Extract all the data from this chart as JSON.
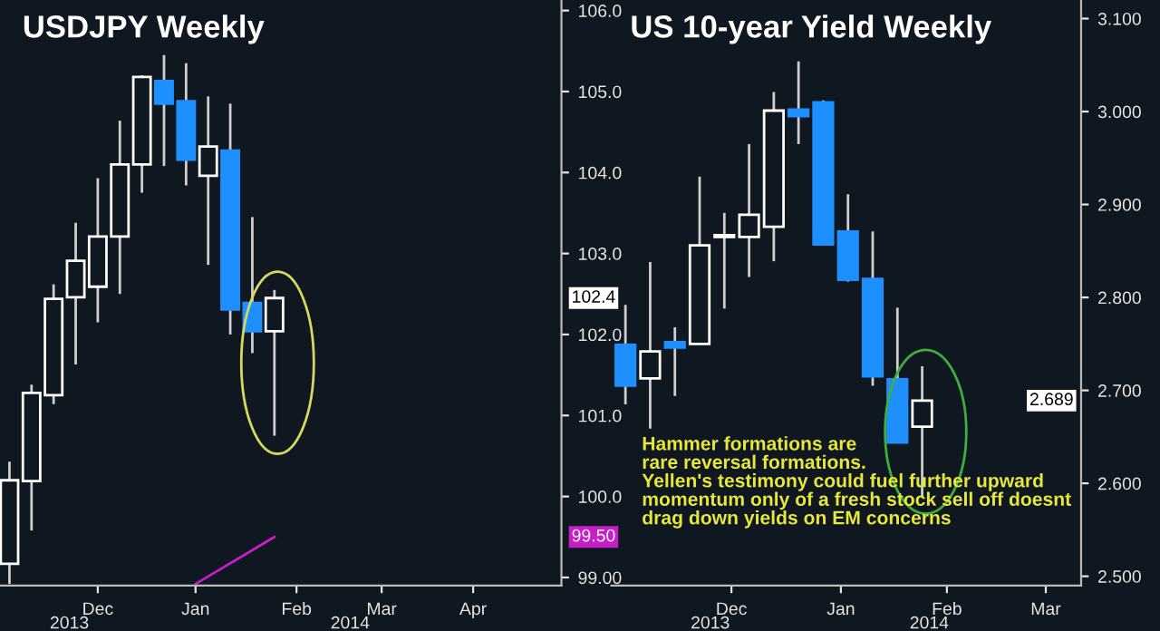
{
  "chart_data": [
    {
      "type": "candlestick",
      "title": "USDJPY Weekly",
      "x": [
        "2013-11-15",
        "2013-11-22",
        "2013-11-29",
        "2013-12-06",
        "2013-12-13",
        "2013-12-20",
        "2013-12-27",
        "2014-01-03",
        "2014-01-10",
        "2014-01-17",
        "2014-01-24",
        "2014-01-31",
        "2014-02-07"
      ],
      "ohlc": [
        [
          99.17,
          100.43,
          98.92,
          100.2
        ],
        [
          100.19,
          101.38,
          99.58,
          101.28
        ],
        [
          101.25,
          102.62,
          101.14,
          102.44
        ],
        [
          102.46,
          103.38,
          101.63,
          102.91
        ],
        [
          102.59,
          103.93,
          102.15,
          103.21
        ],
        [
          103.21,
          104.64,
          102.5,
          104.1
        ],
        [
          104.1,
          105.2,
          103.75,
          105.18
        ],
        [
          105.13,
          105.45,
          104.08,
          104.85
        ],
        [
          104.88,
          105.35,
          103.84,
          104.16
        ],
        [
          103.96,
          104.94,
          102.86,
          104.32
        ],
        [
          104.27,
          104.85,
          102.0,
          102.31
        ],
        [
          102.39,
          103.45,
          101.77,
          102.04
        ],
        [
          102.04,
          102.55,
          100.75,
          102.45
        ]
      ],
      "colors": [
        "#ffffff",
        "#ffffff",
        "#ffffff",
        "#ffffff",
        "#ffffff",
        "#ffffff",
        "#ffffff",
        "#1e8fff",
        "#1e8fff",
        "#ffffff",
        "#1e8fff",
        "#1e8fff",
        "#ffffff"
      ],
      "series": [
        {
          "type": "line",
          "color": "#c81ec8",
          "x": [
            "2014-01-13",
            "2014-02-07"
          ],
          "values": [
            98.92,
            99.5
          ]
        }
      ],
      "xlim": [
        "2013-11-12",
        "2014-05-09"
      ],
      "xticks": [
        {
          "value": "2013-12-13",
          "label": "Dec"
        },
        {
          "value": "2014-01-13",
          "label": "Jan"
        },
        {
          "value": "2014-02-14",
          "label": "Feb"
        },
        {
          "value": "2014-03-13",
          "label": "Mar"
        },
        {
          "value": "2014-04-11",
          "label": "Apr"
        }
      ],
      "x2lim": [
        "2013-11-12",
        "2014-05-09"
      ],
      "x2ticks": [
        {
          "value": "2013-12-04",
          "label": "2013"
        },
        {
          "value": "2014-03-03",
          "label": "2014"
        }
      ],
      "ylim": [
        98.9,
        106.13
      ],
      "yticks": [
        {
          "value": 99,
          "label": "99.00"
        },
        {
          "value": 100,
          "label": "100.0"
        },
        {
          "value": 101,
          "label": "101.0"
        },
        {
          "value": 102,
          "label": "102.0"
        },
        {
          "value": 103,
          "label": "103.0"
        },
        {
          "value": 104,
          "label": "104.0"
        },
        {
          "value": 105,
          "label": "105.0"
        },
        {
          "value": 106,
          "label": "106.0"
        }
      ],
      "annotations": [
        "102.4",
        "99.50"
      ],
      "grid": false,
      "legend": false
    },
    {
      "type": "candlestick",
      "title": "US 10-year Yield Weekly",
      "x": [
        "2013-11-15",
        "2013-11-22",
        "2013-11-29",
        "2013-12-06",
        "2013-12-13",
        "2013-12-20",
        "2013-12-27",
        "2014-01-03",
        "2014-01-10",
        "2014-01-17",
        "2014-01-24",
        "2014-01-31",
        "2014-02-07"
      ],
      "ohlc": [
        [
          2.749,
          2.792,
          2.685,
          2.705
        ],
        [
          2.713,
          2.838,
          2.659,
          2.742
        ],
        [
          2.752,
          2.768,
          2.694,
          2.746
        ],
        [
          2.75,
          2.93,
          2.75,
          2.856
        ],
        [
          2.865,
          2.891,
          2.788,
          2.867
        ],
        [
          2.865,
          2.965,
          2.822,
          2.889
        ],
        [
          2.876,
          3.021,
          2.839,
          3.001
        ],
        [
          3.002,
          3.054,
          2.965,
          2.995
        ],
        [
          3.01,
          3.012,
          2.856,
          2.857
        ],
        [
          2.871,
          2.911,
          2.817,
          2.819
        ],
        [
          2.82,
          2.871,
          2.705,
          2.715
        ],
        [
          2.712,
          2.789,
          2.644,
          2.644
        ],
        [
          2.661,
          2.726,
          2.585,
          2.689
        ]
      ],
      "colors": [
        "#1e8fff",
        "#ffffff",
        "#1e8fff",
        "#ffffff",
        "#ffffff",
        "#ffffff",
        "#ffffff",
        "#1e8fff",
        "#1e8fff",
        "#1e8fff",
        "#1e8fff",
        "#1e8fff",
        "#ffffff"
      ],
      "xlim": [
        "2013-11-11",
        "2014-03-24"
      ],
      "xticks": [
        {
          "value": "2013-12-15",
          "label": "Dec"
        },
        {
          "value": "2014-01-15",
          "label": "Jan"
        },
        {
          "value": "2014-02-14",
          "label": "Feb"
        },
        {
          "value": "2014-03-14",
          "label": "Mar"
        }
      ],
      "x2lim": [
        "2013-11-11",
        "2014-03-24"
      ],
      "x2ticks": [
        {
          "value": "2013-12-09",
          "label": "2013"
        },
        {
          "value": "2014-02-09",
          "label": "2014"
        }
      ],
      "ylim": [
        2.49,
        3.12
      ],
      "yticks": [
        {
          "value": 2.5,
          "label": "2.500"
        },
        {
          "value": 2.6,
          "label": "2.600"
        },
        {
          "value": 2.7,
          "label": "2.700"
        },
        {
          "value": 2.8,
          "label": "2.800"
        },
        {
          "value": 2.9,
          "label": "2.900"
        },
        {
          "value": 3.0,
          "label": "3.000"
        },
        {
          "value": 3.1,
          "label": "3.100"
        }
      ],
      "annotations": [
        "2.689",
        "Hammer formations are\nrare reversal formations.\nYellen's testimony could fuel further upward\nmomentum only of a fresh stock sell off doesnt\ndrag down yields on EM concerns"
      ],
      "grid": false,
      "legend": false
    }
  ]
}
